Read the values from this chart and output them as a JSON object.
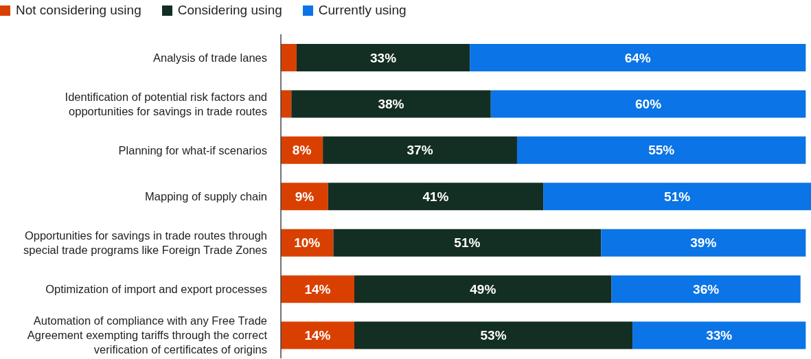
{
  "chart_data": {
    "type": "bar",
    "orientation": "horizontal",
    "stacked": true,
    "categories": [
      "Analysis of trade lanes",
      "Identification of potential risk factors and opportunities for savings in trade routes",
      "Planning for what-if scenarios",
      "Mapping of supply chain",
      "Opportunities for savings in trade routes through special trade programs like Foreign Trade Zones",
      "Optimization of import and export processes",
      "Automation of compliance with any Free Trade Agreement exempting tariffs through the correct verification of certificates of origins"
    ],
    "series": [
      {
        "name": "Not considering using",
        "color": "#d94000",
        "values": [
          3,
          2,
          8,
          9,
          10,
          14,
          14
        ],
        "value_labels": [
          null,
          null,
          "8%",
          "9%",
          "10%",
          "14%",
          "14%"
        ]
      },
      {
        "name": "Considering using",
        "color": "#132e22",
        "values": [
          33,
          38,
          37,
          41,
          51,
          49,
          53
        ],
        "value_labels": [
          "33%",
          "38%",
          "37%",
          "41%",
          "51%",
          "49%",
          "53%"
        ]
      },
      {
        "name": "Currently using",
        "color": "#0b74e6",
        "values": [
          64,
          60,
          55,
          51,
          39,
          36,
          33
        ],
        "value_labels": [
          "64%",
          "60%",
          "55%",
          "51%",
          "39%",
          "36%",
          "33%"
        ]
      }
    ],
    "xlim": [
      0,
      101
    ],
    "tick_labels": "y",
    "legend": "top left",
    "grid": false
  }
}
